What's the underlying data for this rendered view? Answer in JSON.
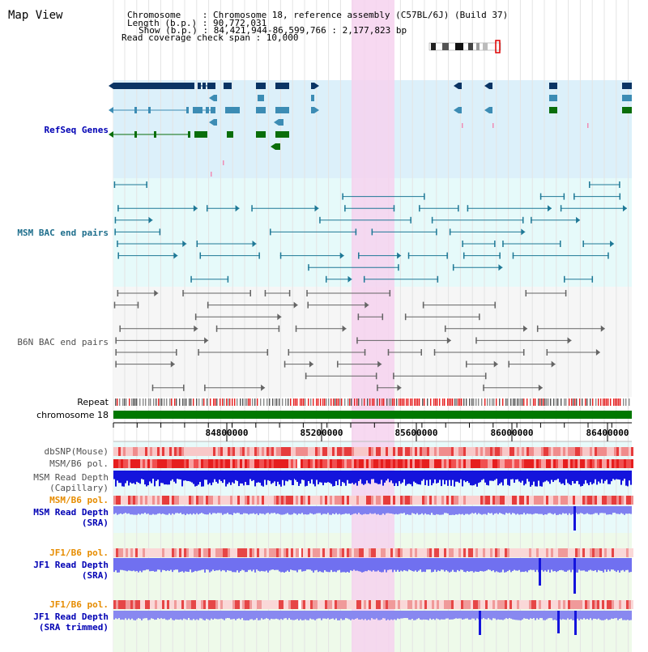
{
  "app": {
    "title": "Map View"
  },
  "header": {
    "chromosome_label": "Chromosome    : Chromosome 18, reference assembly (C57BL/6J) (Build 37)",
    "length_label": "Length (b.p.) : 90,772,031",
    "show_label": "Show (b.p.) : 84,421,944-86,599,766 : 2,177,823 bp",
    "coverage_label": "Read coverage check span : 10,000"
  },
  "tracks": {
    "refseq": "RefSeq Genes",
    "msm_bac": "MSM BAC end pairs",
    "b6n_bac": "B6N BAC end pairs",
    "repeat": "Repeat",
    "chromosome": "chromosome 18",
    "dbsnp": "dbSNP(Mouse)",
    "msm_b6_pol": "MSM/B6 pol.",
    "msm_depth_cap_1": "MSM Read Depth",
    "msm_depth_cap_2": "(Capillary)",
    "msm_b6_pol2": "MSM/B6 pol.",
    "msm_depth_sra_1": "MSM Read Depth",
    "msm_depth_sra_2": "(SRA)",
    "jf1_b6_pol": "JF1/B6 pol.",
    "jf1_depth_sra_1": "JF1 Read Depth",
    "jf1_depth_sra_2": "(SRA)",
    "jf1_b6_pol2": "JF1/B6 pol.",
    "jf1_depth_trim_1": "JF1 Read Depth",
    "jf1_depth_trim_2": "(SRA trimmed)"
  },
  "ruler": {
    "ticks": [
      "84800000",
      "85200000",
      "85600000",
      "86000000",
      "86400000"
    ]
  },
  "colors": {
    "refseq_bg": "#dcf0fa",
    "msm_bg": "#e6fafa",
    "highlight": "#f6d2ee",
    "gene_dark": "#0a3464",
    "gene_light": "#3c8cb4",
    "gene_green": "#0a6e0a",
    "msm_line": "#1e7896",
    "b6n_line": "#646464",
    "chromosome_bar": "#007800",
    "pol_red": "#e61e1e",
    "depth_blue": "#1414dc",
    "depth_light": "#7878f0",
    "label_blue": "#0000b4",
    "label_orange": "#e68c00",
    "label_gray": "#505050"
  }
}
